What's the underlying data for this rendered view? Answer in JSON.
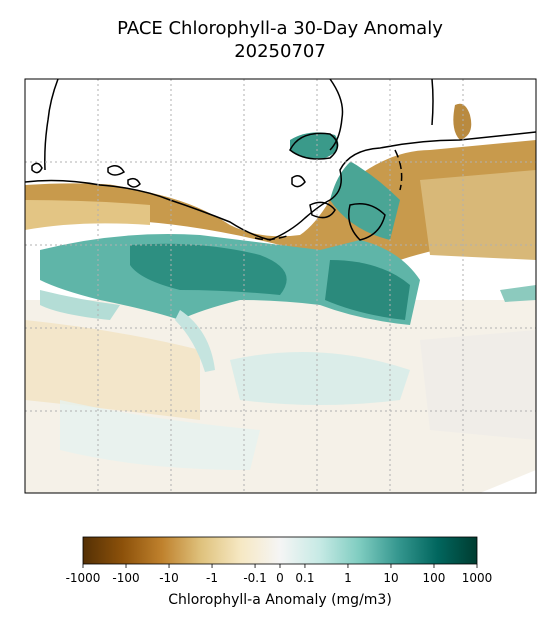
{
  "chart_data": {
    "type": "map",
    "title": "PACE Chlorophyll-a 30-Day Anomaly",
    "subtitle": "20250707",
    "colorbar": {
      "label": "Chlorophyll-a Anomaly (mg/m3)",
      "scale": "symlog",
      "colormap": "BrBG",
      "lim": [
        -1000,
        1000
      ],
      "ticks": [
        -1000,
        -100,
        -10,
        -1,
        -0.1,
        0,
        0.1,
        1,
        10,
        100,
        1000
      ]
    }
  }
}
